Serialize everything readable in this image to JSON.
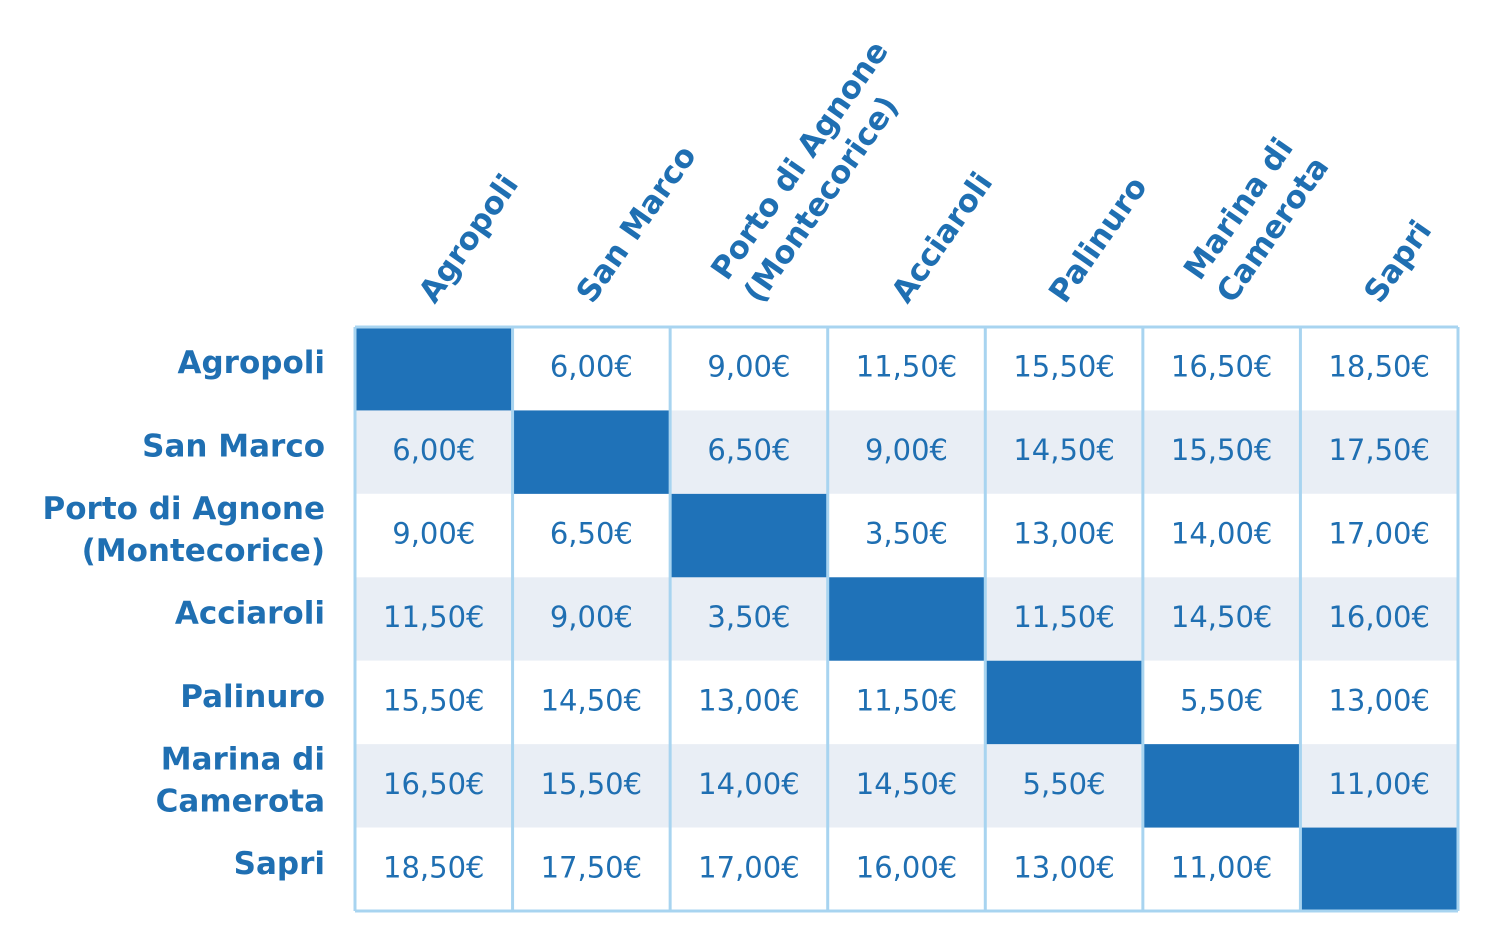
{
  "table": {
    "columns": [
      [
        "Agropoli"
      ],
      [
        "San Marco"
      ],
      [
        "Porto di Agnone",
        "(Montecorice)"
      ],
      [
        "Acciaroli"
      ],
      [
        "Palinuro"
      ],
      [
        "Marina di",
        "Camerota"
      ],
      [
        "Sapri"
      ]
    ],
    "rows": [
      {
        "label": [
          "Agropoli"
        ],
        "cells": [
          null,
          "6,00€",
          "9,00€",
          "11,50€",
          "15,50€",
          "16,50€",
          "18,50€"
        ]
      },
      {
        "label": [
          "San Marco"
        ],
        "cells": [
          "6,00€",
          null,
          "6,50€",
          "9,00€",
          "14,50€",
          "15,50€",
          "17,50€"
        ]
      },
      {
        "label": [
          "Porto di Agnone",
          "(Montecorice)"
        ],
        "cells": [
          "9,00€",
          "6,50€",
          null,
          "3,50€",
          "13,00€",
          "14,00€",
          "17,00€"
        ]
      },
      {
        "label": [
          "Acciaroli"
        ],
        "cells": [
          "11,50€",
          "9,00€",
          "3,50€",
          null,
          "11,50€",
          "14,50€",
          "16,00€"
        ]
      },
      {
        "label": [
          "Palinuro"
        ],
        "cells": [
          "15,50€",
          "14,50€",
          "13,00€",
          "11,50€",
          null,
          "5,50€",
          "13,00€"
        ]
      },
      {
        "label": [
          "Marina di",
          "Camerota"
        ],
        "cells": [
          "16,50€",
          "15,50€",
          "14,00€",
          "14,50€",
          "5,50€",
          null,
          "11,00€"
        ]
      },
      {
        "label": [
          "Sapri"
        ],
        "cells": [
          "18,50€",
          "17,50€",
          "17,00€",
          "16,00€",
          "13,00€",
          "11,00€",
          null
        ]
      }
    ]
  }
}
